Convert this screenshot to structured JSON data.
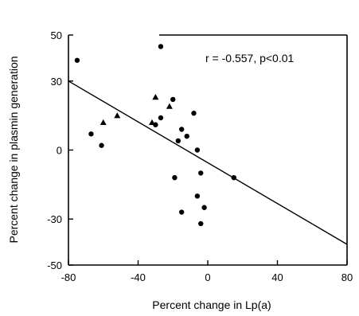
{
  "chart_data": {
    "type": "scatter",
    "xlabel": "Percent change in Lp(a)",
    "ylabel": "Percent change in plasmin generation",
    "xlim": [
      -80,
      80
    ],
    "ylim": [
      -50,
      50
    ],
    "x_ticks": [
      "-80",
      "-40",
      "0",
      "40",
      "80"
    ],
    "y_ticks": [
      "50",
      "30",
      "0",
      "-30",
      "-50"
    ],
    "annotation": "r = -0.557, p<0.01",
    "grid": false,
    "points_circle": [
      {
        "x": -75,
        "y": 39
      },
      {
        "x": -67,
        "y": 7
      },
      {
        "x": -61,
        "y": 2
      },
      {
        "x": -30,
        "y": 11
      },
      {
        "x": -27,
        "y": 14
      },
      {
        "x": -27,
        "y": 45
      },
      {
        "x": -20,
        "y": 22
      },
      {
        "x": -17,
        "y": 4
      },
      {
        "x": -15,
        "y": 9
      },
      {
        "x": -12,
        "y": 6
      },
      {
        "x": -8,
        "y": 16
      },
      {
        "x": -6,
        "y": 0
      },
      {
        "x": -4,
        "y": -10
      },
      {
        "x": -6,
        "y": -20
      },
      {
        "x": -2,
        "y": -25
      },
      {
        "x": -4,
        "y": -32
      },
      {
        "x": -19,
        "y": -12
      },
      {
        "x": -15,
        "y": -27
      },
      {
        "x": 15,
        "y": -12
      }
    ],
    "points_triangle": [
      {
        "x": -60,
        "y": 12
      },
      {
        "x": -52,
        "y": 15
      },
      {
        "x": -32,
        "y": 12
      },
      {
        "x": -30,
        "y": 23
      },
      {
        "x": -22,
        "y": 19
      }
    ],
    "regression_line": {
      "x": [
        -80,
        80
      ],
      "y": [
        30,
        -41
      ]
    }
  }
}
